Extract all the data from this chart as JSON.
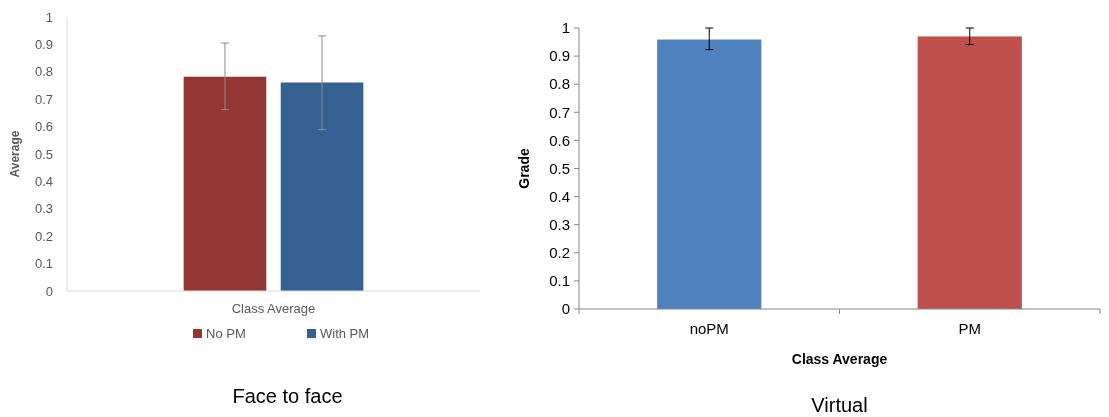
{
  "chart_data": [
    {
      "type": "bar",
      "title": "Face to face",
      "ylabel": "Average",
      "categories": [
        "Class Average"
      ],
      "series": [
        {
          "name": "No PM",
          "color": "#943634",
          "values": [
            0.782
          ],
          "errors": [
            [
              0.662,
              0.905
            ]
          ]
        },
        {
          "name": "With PM",
          "color": "#376092",
          "values": [
            0.761
          ],
          "errors": [
            [
              0.589,
              0.931
            ]
          ]
        }
      ],
      "ylim": [
        0,
        1
      ],
      "yticks": [
        0,
        0.1,
        0.2,
        0.3,
        0.4,
        0.5,
        0.6,
        0.7,
        0.8,
        0.9,
        1
      ],
      "legend": "bottom"
    },
    {
      "type": "bar",
      "title": "Virtual",
      "xlabel": "Class Average",
      "ylabel": "Grade",
      "categories": [
        "noPM",
        "PM"
      ],
      "colors": [
        "#4f81bd",
        "#c0504d"
      ],
      "values": [
        0.959,
        0.97
      ],
      "errors": [
        [
          0.923,
          1.0
        ],
        [
          0.941,
          1.0
        ]
      ],
      "ylim": [
        0,
        1
      ],
      "yticks": [
        0,
        0.1,
        0.2,
        0.3,
        0.4,
        0.5,
        0.6,
        0.7,
        0.8,
        0.9,
        1
      ]
    }
  ]
}
